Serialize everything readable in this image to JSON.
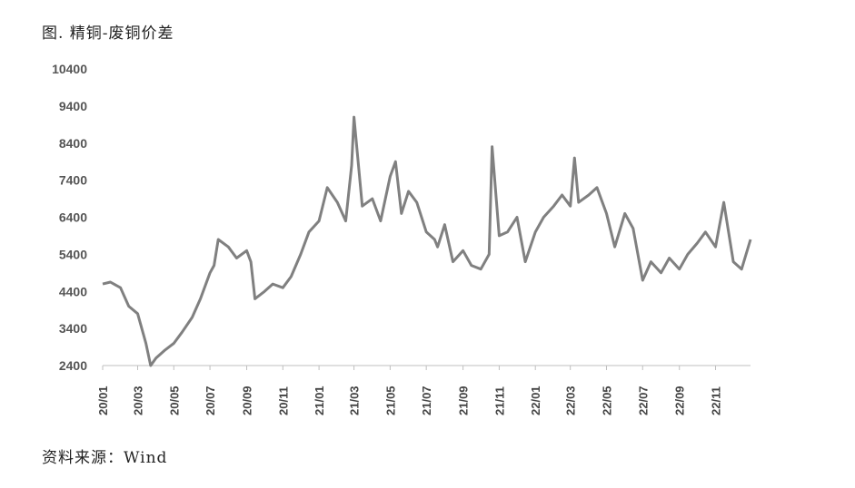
{
  "title": "图. 精铜-废铜价差",
  "source": "资料来源：Wind",
  "chart_data": {
    "type": "line",
    "title": "图. 精铜-废铜价差",
    "xlabel": "",
    "ylabel": "",
    "ylim": [
      2400,
      10400
    ],
    "yticks": [
      "10400",
      "9400",
      "8400",
      "7400",
      "6400",
      "5400",
      "4400",
      "3400",
      "2400"
    ],
    "xticks": [
      "20/01",
      "20/03",
      "20/05",
      "20/07",
      "20/09",
      "20/11",
      "21/01",
      "21/03",
      "21/05",
      "21/07",
      "21/09",
      "21/11",
      "22/01",
      "22/03",
      "22/05",
      "22/07",
      "22/09",
      "22/11"
    ],
    "legend": "none",
    "grid": false,
    "color": "#808080",
    "series": [
      {
        "name": "",
        "x": [
          "2020-01-02",
          "2020-01-15",
          "2020-02-01",
          "2020-02-15",
          "2020-03-01",
          "2020-03-15",
          "2020-03-23",
          "2020-04-01",
          "2020-04-15",
          "2020-05-01",
          "2020-05-15",
          "2020-06-01",
          "2020-06-15",
          "2020-07-01",
          "2020-07-08",
          "2020-07-15",
          "2020-08-01",
          "2020-08-15",
          "2020-09-01",
          "2020-09-08",
          "2020-09-15",
          "2020-10-01",
          "2020-10-15",
          "2020-11-01",
          "2020-11-15",
          "2020-12-01",
          "2020-12-15",
          "2021-01-01",
          "2021-01-15",
          "2021-02-01",
          "2021-02-15",
          "2021-02-25",
          "2021-03-01",
          "2021-03-15",
          "2021-04-01",
          "2021-04-15",
          "2021-05-01",
          "2021-05-10",
          "2021-05-20",
          "2021-06-01",
          "2021-06-15",
          "2021-07-01",
          "2021-07-15",
          "2021-07-20",
          "2021-08-01",
          "2021-08-15",
          "2021-09-01",
          "2021-09-15",
          "2021-10-01",
          "2021-10-15",
          "2021-10-20",
          "2021-11-01",
          "2021-11-15",
          "2021-12-01",
          "2021-12-15",
          "2022-01-01",
          "2022-01-15",
          "2022-02-01",
          "2022-02-15",
          "2022-03-01",
          "2022-03-08",
          "2022-03-15",
          "2022-04-01",
          "2022-04-15",
          "2022-05-01",
          "2022-05-15",
          "2022-06-01",
          "2022-06-15",
          "2022-07-01",
          "2022-07-15",
          "2022-08-01",
          "2022-08-15",
          "2022-09-01",
          "2022-09-15",
          "2022-10-01",
          "2022-10-15",
          "2022-11-01",
          "2022-11-15",
          "2022-12-01",
          "2022-12-15",
          "2022-12-30"
        ],
        "values": [
          4600,
          4650,
          4500,
          4000,
          3800,
          3000,
          2400,
          2600,
          2800,
          3000,
          3300,
          3700,
          4200,
          4900,
          5100,
          5800,
          5600,
          5300,
          5500,
          5200,
          4200,
          4400,
          4600,
          4500,
          4800,
          5400,
          6000,
          6300,
          7200,
          6800,
          6300,
          7800,
          9100,
          6700,
          6900,
          6300,
          7500,
          7900,
          6500,
          7100,
          6800,
          6000,
          5800,
          5600,
          6200,
          5200,
          5500,
          5100,
          5000,
          5400,
          8300,
          5900,
          6000,
          6400,
          5200,
          6000,
          6400,
          6700,
          7000,
          6700,
          8000,
          6800,
          7000,
          7200,
          6500,
          5600,
          6500,
          6100,
          4700,
          5200,
          4900,
          5300,
          5000,
          5400,
          5700,
          6000,
          5600,
          6800,
          5200,
          5000,
          5800
        ]
      }
    ]
  }
}
